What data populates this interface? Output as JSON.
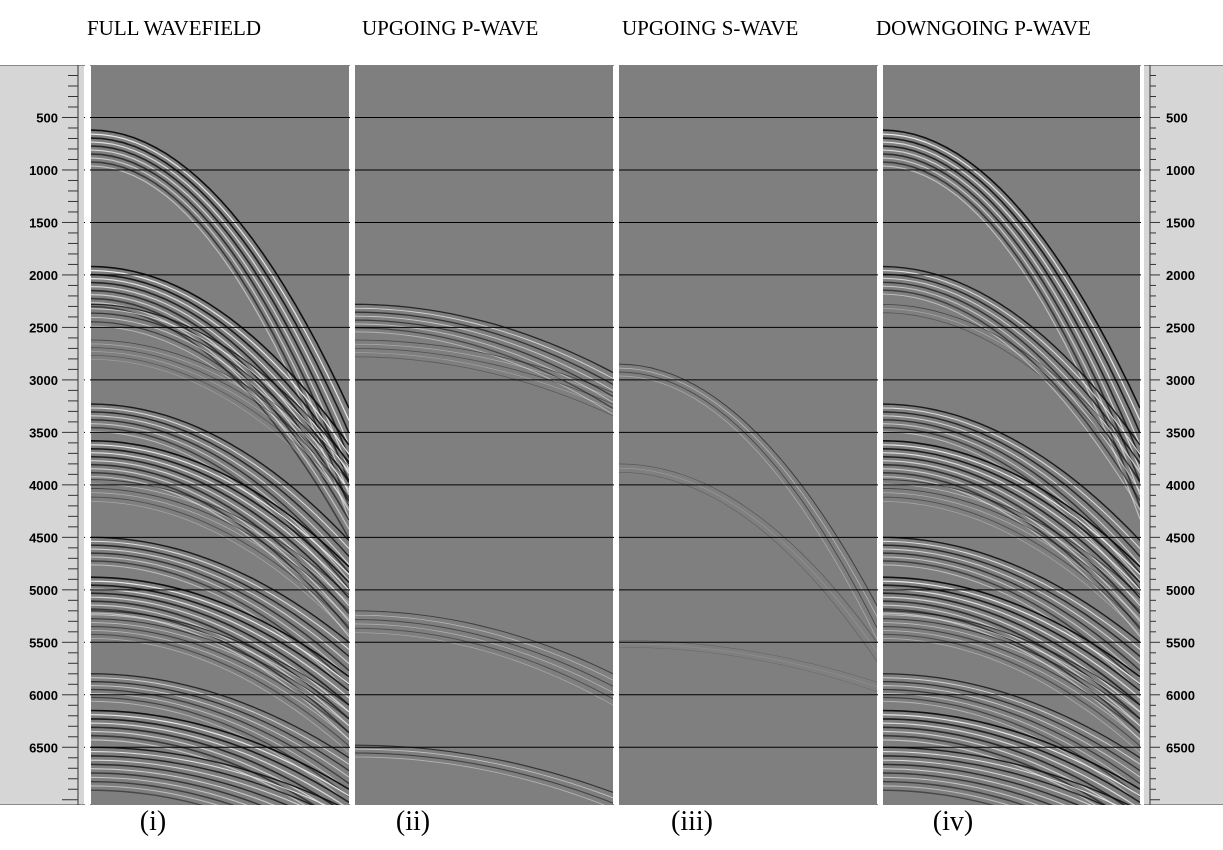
{
  "titles": {
    "full": "FULL WAVEFIELD",
    "up_p": "UPGOING P-WAVE",
    "up_s": "UPGOING S-WAVE",
    "down_p": "DOWNGOING P-WAVE"
  },
  "captions": {
    "i": "(i)",
    "ii": "(ii)",
    "iii": "(iii)",
    "iv": "(iv)"
  },
  "axis": {
    "ticks": [
      500,
      1000,
      1500,
      2000,
      2500,
      3000,
      3500,
      4000,
      4500,
      5000,
      5500,
      6000,
      6500
    ],
    "tick_labels": [
      "500",
      "1000",
      "1500",
      "2000",
      "2500",
      "3000",
      "3500",
      "4000",
      "4500",
      "5000",
      "5500",
      "6000",
      "6500"
    ],
    "range": [
      0,
      7050
    ]
  },
  "events": {
    "full": [
      {
        "t0": 620,
        "w": 380,
        "curv": 2650,
        "amp": 1
      },
      {
        "t0": 1920,
        "w": 420,
        "curv": 1700,
        "amp": 1
      },
      {
        "t0": 2280,
        "w": 250,
        "curv": 1500,
        "amp": 0.8
      },
      {
        "t0": 2620,
        "w": 220,
        "curv": 1200,
        "amp": 0.5
      },
      {
        "t0": 3230,
        "w": 300,
        "curv": 1300,
        "amp": 0.9
      },
      {
        "t0": 3580,
        "w": 380,
        "curv": 1200,
        "amp": 1
      },
      {
        "t0": 3950,
        "w": 250,
        "curv": 1100,
        "amp": 0.6
      },
      {
        "t0": 4500,
        "w": 300,
        "curv": 1000,
        "amp": 0.9
      },
      {
        "t0": 4880,
        "w": 380,
        "curv": 950,
        "amp": 1
      },
      {
        "t0": 5200,
        "w": 300,
        "curv": 900,
        "amp": 0.7
      },
      {
        "t0": 5800,
        "w": 300,
        "curv": 800,
        "amp": 0.8
      },
      {
        "t0": 6150,
        "w": 320,
        "curv": 750,
        "amp": 1
      },
      {
        "t0": 6500,
        "w": 450,
        "curv": 600,
        "amp": 0.9
      }
    ],
    "up_p": [
      {
        "t0": 2280,
        "w": 300,
        "curv": 650,
        "amp": 0.8
      },
      {
        "t0": 2620,
        "w": 200,
        "curv": 500,
        "amp": 0.5
      },
      {
        "t0": 5200,
        "w": 250,
        "curv": 600,
        "amp": 0.6
      },
      {
        "t0": 6480,
        "w": 150,
        "curv": 450,
        "amp": 0.7
      }
    ],
    "up_s": [
      {
        "t0": 2850,
        "w": 150,
        "curv": 2300,
        "amp": 0.6
      },
      {
        "t0": 3800,
        "w": 120,
        "curv": 1700,
        "amp": 0.4
      },
      {
        "t0": 5480,
        "w": 100,
        "curv": 400,
        "amp": 0.3
      }
    ],
    "down_p": [
      {
        "t0": 620,
        "w": 380,
        "curv": 2650,
        "amp": 1
      },
      {
        "t0": 1920,
        "w": 300,
        "curv": 1700,
        "amp": 0.9
      },
      {
        "t0": 2280,
        "w": 120,
        "curv": 1500,
        "amp": 0.5
      },
      {
        "t0": 3230,
        "w": 300,
        "curv": 1300,
        "amp": 0.9
      },
      {
        "t0": 3580,
        "w": 380,
        "curv": 1200,
        "amp": 1
      },
      {
        "t0": 3950,
        "w": 250,
        "curv": 1100,
        "amp": 0.6
      },
      {
        "t0": 4500,
        "w": 300,
        "curv": 1000,
        "amp": 0.9
      },
      {
        "t0": 4880,
        "w": 380,
        "curv": 950,
        "amp": 1
      },
      {
        "t0": 5200,
        "w": 300,
        "curv": 900,
        "amp": 0.7
      },
      {
        "t0": 5800,
        "w": 300,
        "curv": 800,
        "amp": 0.8
      },
      {
        "t0": 6150,
        "w": 320,
        "curv": 750,
        "amp": 1
      },
      {
        "t0": 6500,
        "w": 450,
        "curv": 600,
        "amp": 0.9
      }
    ]
  },
  "colors": {
    "panel_bg": "#7f7f7f",
    "axis_bg": "#d6d6d6",
    "separator": "#ffffff",
    "gridline": "#000000"
  }
}
